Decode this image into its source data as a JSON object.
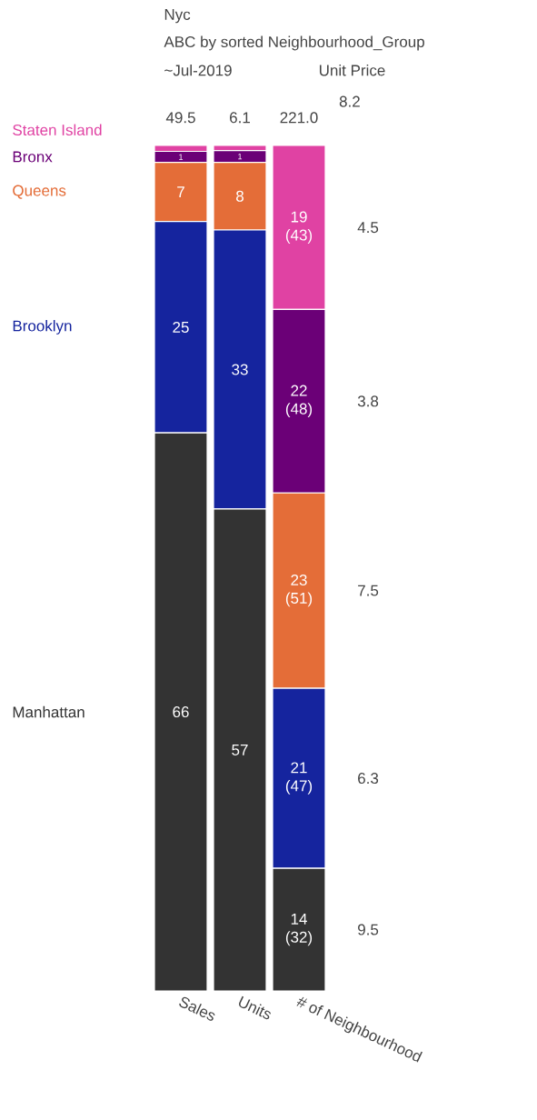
{
  "chart_data": {
    "type": "bar",
    "title": "Nyc",
    "subtitle": "ABC by sorted Neighbourhood_Group",
    "categories": [
      "Sales",
      "Units",
      "# of Neighbourhood"
    ],
    "stacked": true,
    "ylim": [
      0,
      100
    ],
    "tick_labels": "x",
    "series": [
      {
        "name": "Manhattan",
        "color": "#333333",
        "values": [
          66,
          57,
          14.5
        ],
        "value_labels": [
          "66",
          "57",
          "14 (32)"
        ]
      },
      {
        "name": "Brooklyn",
        "color": "#15249e",
        "values": [
          25,
          33,
          21.3
        ],
        "value_labels": [
          "25",
          "33",
          "21 (47)"
        ]
      },
      {
        "name": "Queens",
        "color": "#e46d38",
        "values": [
          7,
          8,
          23.1
        ],
        "value_labels": [
          "7",
          "8",
          "23 (51)"
        ]
      },
      {
        "name": "Bronx",
        "color": "#6b0077",
        "values": [
          1.3,
          1.4,
          21.7
        ],
        "value_labels": [
          "1",
          "1",
          "22 (48)"
        ]
      },
      {
        "name": "Staten Island",
        "color": "#e042a3",
        "values": [
          0.7,
          0.6,
          19.4
        ],
        "value_labels": [
          null,
          null,
          "19 (43)"
        ]
      }
    ],
    "annotations": [
      "~Jul-2019",
      "Unit Price",
      "8.2",
      "9.5",
      "6.3",
      "7.5",
      "3.8",
      "4.5",
      "49.5",
      "6.1",
      "221.0"
    ]
  }
}
